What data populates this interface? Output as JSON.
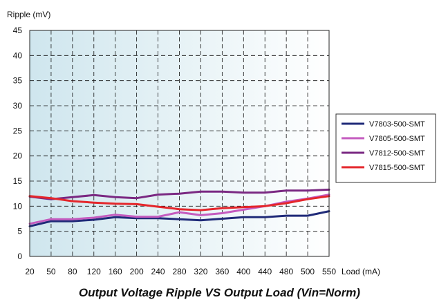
{
  "chart_data": {
    "type": "line",
    "title": "Output Voltage Ripple VS Output Load (Vin=Norm)",
    "ylabel": "Ripple (mV)",
    "xlabel": "Load (mA)",
    "ylim": [
      0,
      45
    ],
    "yticks": [
      "0",
      "5",
      "10",
      "15",
      "20",
      "25",
      "30",
      "35",
      "40",
      "45"
    ],
    "grid": true,
    "legend_position": "right",
    "categories": [
      "20",
      "50",
      "80",
      "120",
      "160",
      "200",
      "240",
      "280",
      "320",
      "360",
      "400",
      "440",
      "480",
      "500",
      "550"
    ],
    "series": [
      {
        "name": "V7803-500-SMT",
        "color": "#1f2a78",
        "values": [
          6.0,
          7.0,
          7.0,
          7.3,
          7.8,
          7.6,
          7.6,
          7.4,
          7.2,
          7.5,
          7.8,
          7.8,
          8.1,
          8.1,
          9.0
        ]
      },
      {
        "name": "V7805-500-SMT",
        "color": "#c45bbf",
        "values": [
          6.5,
          7.4,
          7.4,
          7.7,
          8.3,
          7.9,
          7.9,
          8.8,
          8.2,
          8.6,
          9.3,
          10.0,
          10.9,
          11.5,
          12.3
        ]
      },
      {
        "name": "V7812-500-SMT",
        "color": "#7a2882",
        "values": [
          11.9,
          11.4,
          11.8,
          12.2,
          11.8,
          11.6,
          12.3,
          12.5,
          12.9,
          12.9,
          12.7,
          12.7,
          13.1,
          13.1,
          13.3
        ]
      },
      {
        "name": "V7815-500-SMT",
        "color": "#e4262b",
        "values": [
          12.0,
          11.6,
          11.0,
          10.7,
          10.5,
          10.4,
          9.9,
          9.4,
          9.2,
          9.6,
          9.8,
          10.0,
          10.6,
          11.4,
          12.0
        ]
      }
    ]
  }
}
